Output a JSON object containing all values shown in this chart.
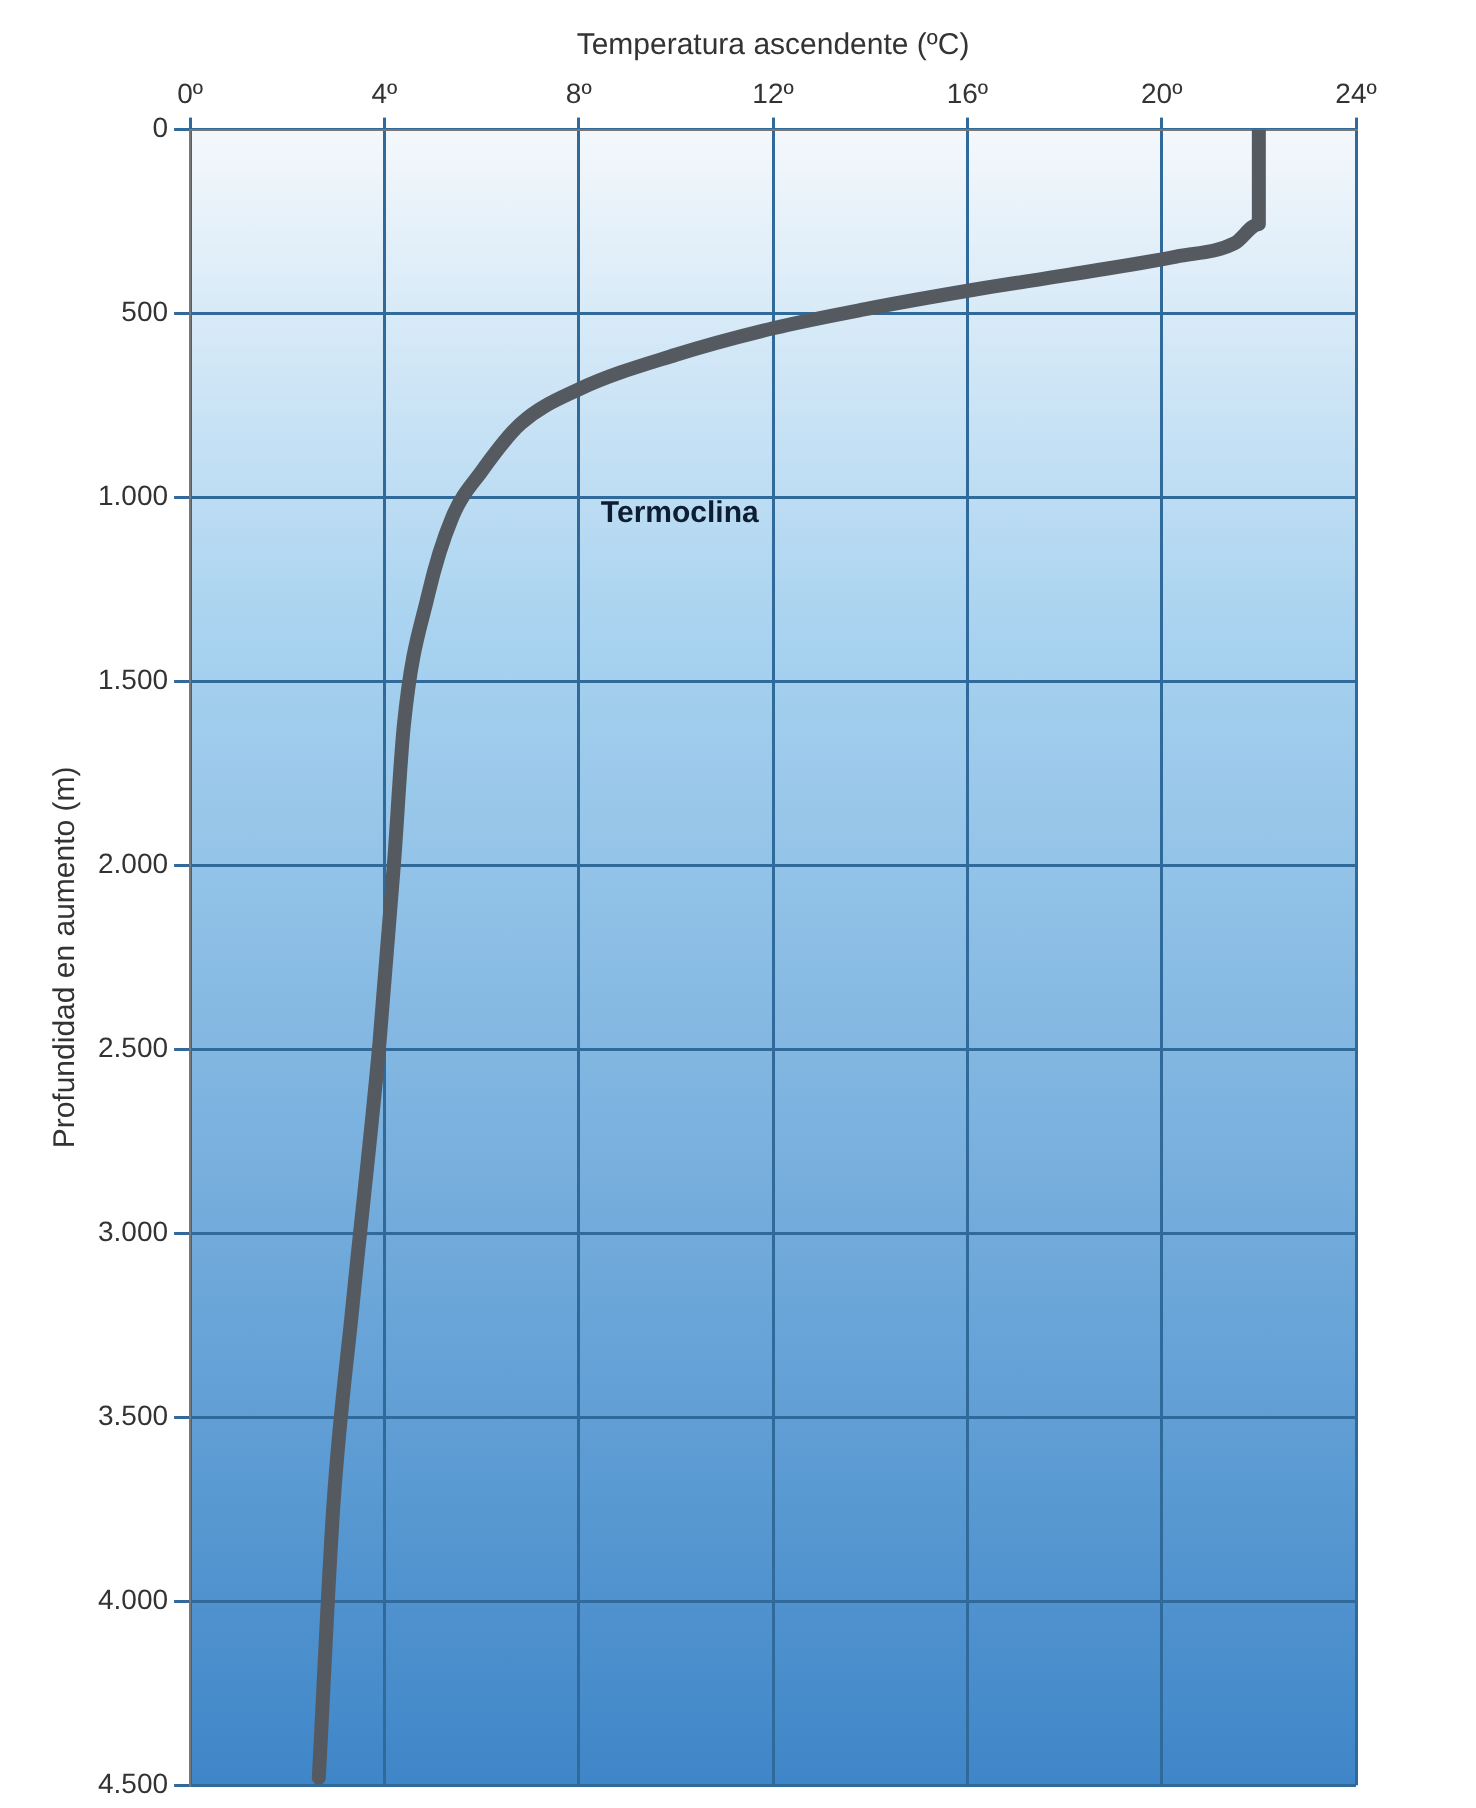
{
  "chart_data": {
    "type": "line",
    "xlabel": "Temperatura ascendente (ºC)",
    "ylabel": "Profundidad en aumento (m)",
    "x": [
      22,
      22,
      22,
      21.5,
      20.3,
      18.1,
      16.1,
      13.9,
      12,
      10,
      8,
      6.8,
      6,
      5.4,
      4.9,
      4.4,
      4.2,
      3.9,
      3.35,
      2.95,
      2.65
    ],
    "series": [
      {
        "color": "#555a60",
        "values": [
          0,
          170,
          257,
          309,
          345,
          394,
          436,
          488,
          540,
          612,
          706,
          800,
          929,
          1053,
          1265,
          1620,
          1990,
          2480,
          3190,
          3740,
          4480
        ]
      }
    ],
    "xlim": [
      0,
      24
    ],
    "xticks": [
      {
        "value": 0,
        "label": "0º"
      },
      {
        "value": 4,
        "label": "4º"
      },
      {
        "value": 8,
        "label": "8º"
      },
      {
        "value": 12,
        "label": "12º"
      },
      {
        "value": 16,
        "label": "16º"
      },
      {
        "value": 20,
        "label": "20º"
      },
      {
        "value": 24,
        "label": "24º"
      }
    ],
    "ylim": [
      4500,
      0
    ],
    "yticks": [
      0,
      500,
      {
        "value": 1000,
        "label": "1.000"
      },
      {
        "value": 1500,
        "label": "1.500"
      },
      {
        "value": 2000,
        "label": "2.000"
      },
      {
        "value": 2500,
        "label": "2.500"
      },
      {
        "value": 3000,
        "label": "3.000"
      },
      {
        "value": 3500,
        "label": "3.500"
      },
      {
        "value": 4000,
        "label": "4.000"
      },
      {
        "value": 4500,
        "label": "4.500"
      }
    ],
    "annotations": [
      "Termoclina"
    ],
    "grid": true,
    "legend": false,
    "marker": "none",
    "line_style": "solid"
  }
}
